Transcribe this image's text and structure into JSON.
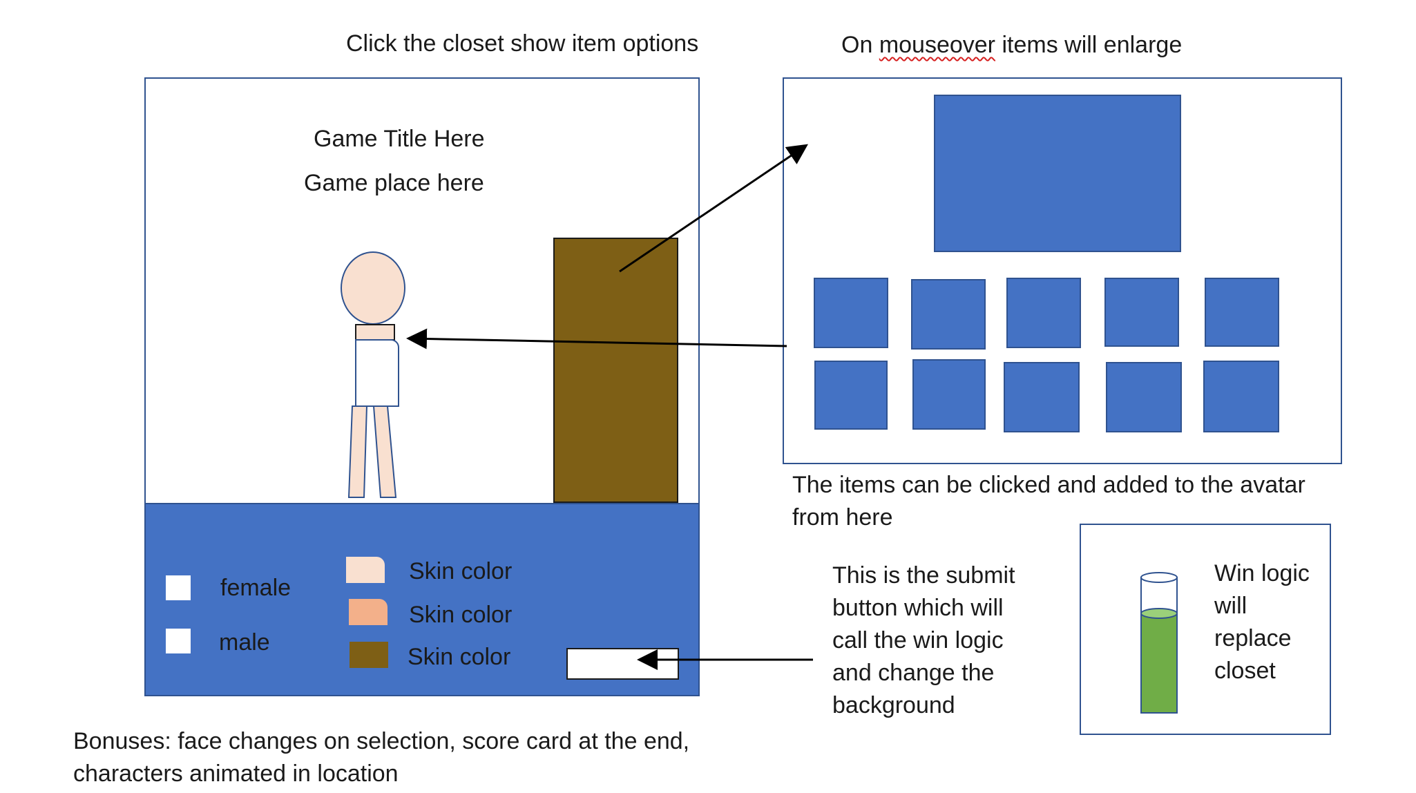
{
  "headings": {
    "closet_click": "Click the closet show item options",
    "mouseover_prefix": "On ",
    "mouseover_word": "mouseover",
    "mouseover_suffix": " items will enlarge"
  },
  "game": {
    "title": "Game Title Here",
    "place": "Game place here"
  },
  "controls": {
    "gender_options": [
      "female",
      "male"
    ],
    "skin_colors": [
      {
        "label": "Skin color",
        "color": "#f9e0d0"
      },
      {
        "label": "Skin color",
        "color": "#f3b08a"
      },
      {
        "label": "Skin color",
        "color": "#7e5f15"
      }
    ]
  },
  "colors": {
    "closet": "#7e5f15",
    "panel_blue": "#4472c4",
    "border_blue": "#2f528f",
    "skin_light": "#f9e0d0",
    "liquid_green": "#70ad47"
  },
  "notes": {
    "items_clickable": "The items can be clicked and added to the avatar from here",
    "submit": "This is the submit button which will call the win logic and change the background",
    "win_logic": "Win logic will replace closet",
    "bonuses_line1": "Bonuses: face changes on selection, score card at the end,",
    "bonuses_line2": "characters animated in location"
  }
}
